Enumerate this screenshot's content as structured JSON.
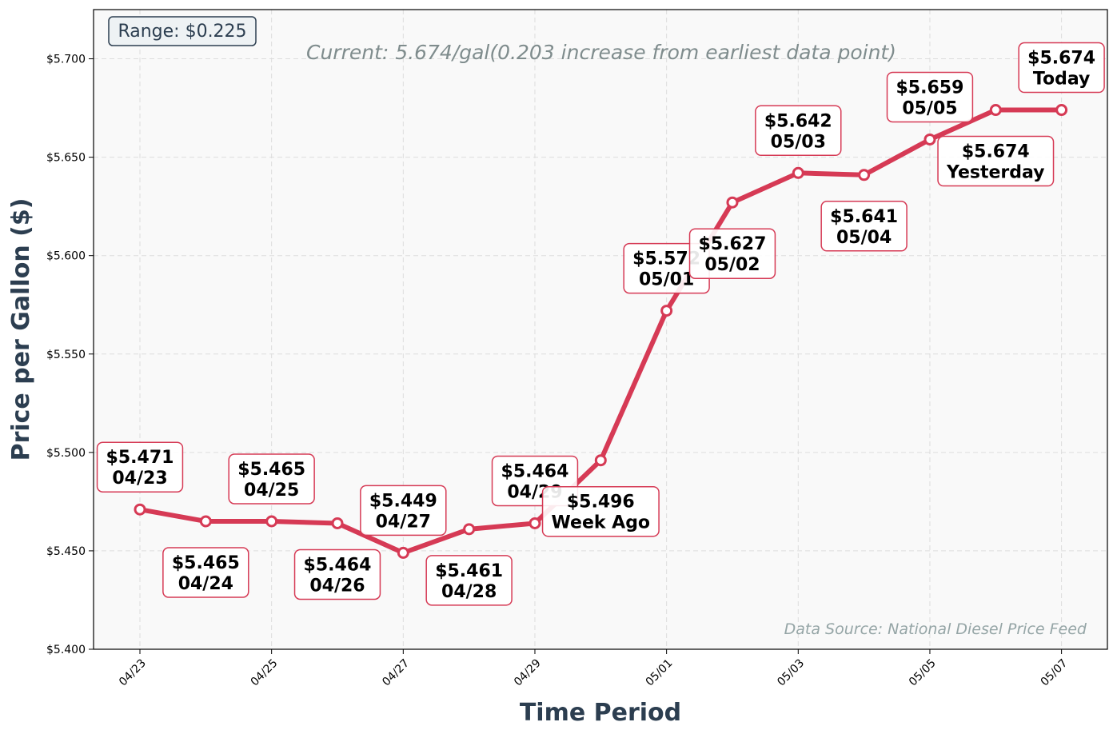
{
  "chart_data": {
    "type": "line",
    "xlabel": "Time Period",
    "ylabel": "Price per Gallon ($)",
    "ylim": [
      5.4,
      5.725
    ],
    "yticks": [
      5.4,
      5.45,
      5.5,
      5.55,
      5.6,
      5.65,
      5.7
    ],
    "ytick_labels": [
      "$5.400",
      "$5.450",
      "$5.500",
      "$5.550",
      "$5.600",
      "$5.650",
      "$5.700"
    ],
    "xtick_labels": [
      "04/23",
      "04/25",
      "04/27",
      "04/29",
      "05/01",
      "05/03",
      "05/05",
      "05/07"
    ],
    "grid": true,
    "subtitle": "Current: 5.674/gal(0.203 increase from earliest data point)",
    "range_label": "Range: $0.225",
    "source": "Data Source: National Diesel Price Feed",
    "colors": {
      "line": "#d63a55",
      "marker_fill": "#ffffff",
      "plot_bg": "#f9f9f9",
      "grid": "#dddddd",
      "label_border": "#d63a55"
    },
    "series": [
      {
        "dates": [
          "04/23",
          "04/24",
          "04/25",
          "04/26",
          "04/27",
          "04/28",
          "04/29",
          "04/30",
          "05/01",
          "05/02",
          "05/03",
          "05/04",
          "05/05",
          "05/06",
          "05/07"
        ],
        "values": [
          5.471,
          5.465,
          5.465,
          5.464,
          5.449,
          5.461,
          5.464,
          5.496,
          5.572,
          5.627,
          5.642,
          5.641,
          5.659,
          5.674,
          5.674
        ]
      }
    ],
    "annotations": [
      {
        "point": "04/23",
        "line1": "$5.471",
        "line2": "04/23",
        "side": "above"
      },
      {
        "point": "04/24",
        "line1": "$5.465",
        "line2": "04/24",
        "side": "below"
      },
      {
        "point": "04/25",
        "line1": "$5.465",
        "line2": "04/25",
        "side": "above"
      },
      {
        "point": "04/26",
        "line1": "$5.464",
        "line2": "04/26",
        "side": "below"
      },
      {
        "point": "04/27",
        "line1": "$5.449",
        "line2": "04/27",
        "side": "above"
      },
      {
        "point": "04/28",
        "line1": "$5.461",
        "line2": "04/28",
        "side": "below"
      },
      {
        "point": "04/29",
        "line1": "$5.464",
        "line2": "04/29",
        "side": "above"
      },
      {
        "point": "04/30",
        "line1": "$5.496",
        "line2": "Week Ago",
        "side": "below"
      },
      {
        "point": "05/01",
        "line1": "$5.572",
        "line2": "05/01",
        "side": "above"
      },
      {
        "point": "05/02",
        "line1": "$5.627",
        "line2": "05/02",
        "side": "below"
      },
      {
        "point": "05/03",
        "line1": "$5.642",
        "line2": "05/03",
        "side": "above"
      },
      {
        "point": "05/04",
        "line1": "$5.641",
        "line2": "05/04",
        "side": "below"
      },
      {
        "point": "05/05",
        "line1": "$5.659",
        "line2": "05/05",
        "side": "above"
      },
      {
        "point": "05/06",
        "line1": "$5.674",
        "line2": "Yesterday",
        "side": "below"
      },
      {
        "point": "05/07",
        "line1": "$5.674",
        "line2": "Today",
        "side": "above"
      }
    ]
  }
}
